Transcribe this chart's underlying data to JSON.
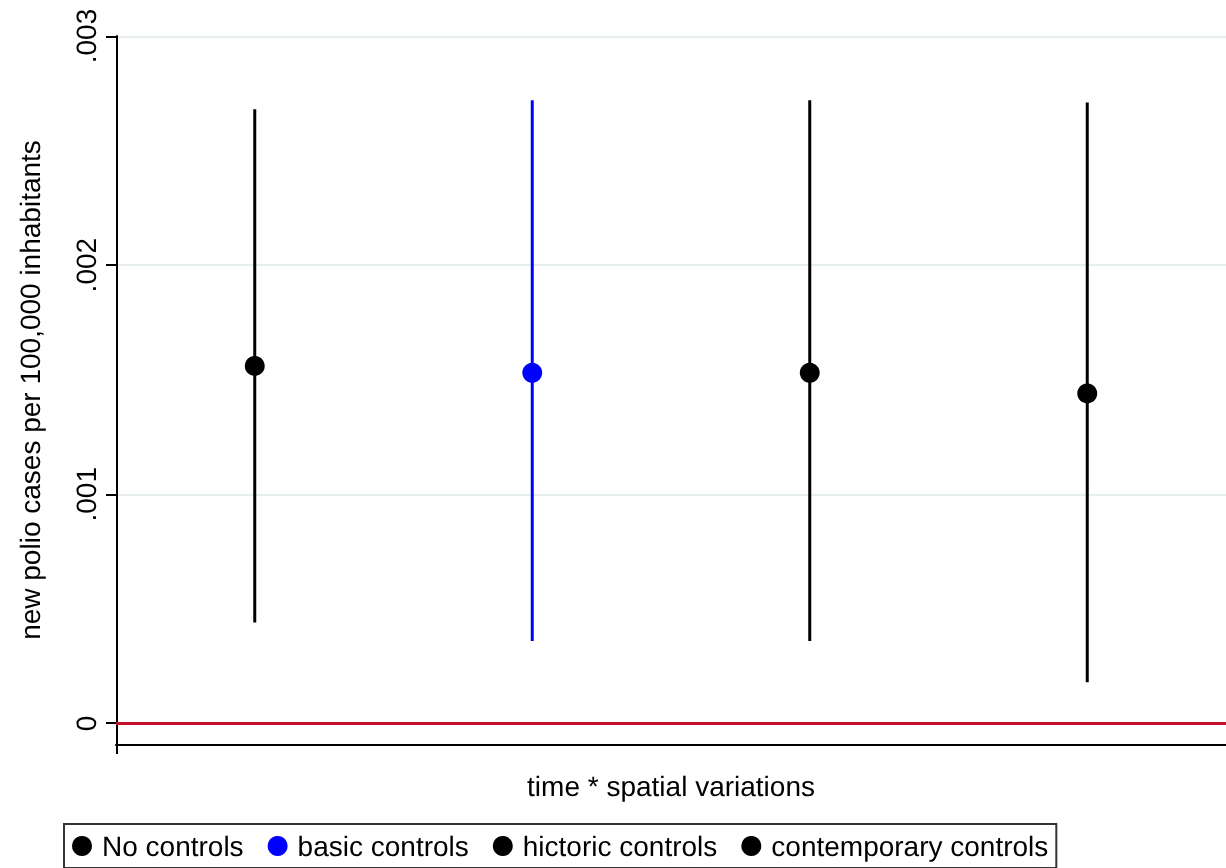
{
  "chart_data": {
    "type": "scatter",
    "xlabel": "time * spatial variations",
    "ylabel": "new polio cases per 100,000 inhabitants",
    "categories": [
      null,
      null,
      null,
      null
    ],
    "ylim": [
      -9e-05,
      0.003
    ],
    "yticks": [
      {
        "value": 0,
        "label": "0"
      },
      {
        "value": 0.001,
        "label": ".001"
      },
      {
        "value": 0.002,
        "label": ".002"
      },
      {
        "value": 0.003,
        "label": ".003"
      }
    ],
    "grid": "y",
    "legend": "bottom",
    "marker": "circle",
    "series": [
      {
        "name": "No controls",
        "color": "#000000",
        "values": [
          0.00156,
          null,
          null,
          null
        ],
        "errors": [
          [
            0.00044,
            0.00268
          ],
          null,
          null,
          null
        ]
      },
      {
        "name": "basic controls",
        "color": "#0000ff",
        "values": [
          null,
          0.00153,
          null,
          null
        ],
        "errors": [
          null,
          [
            0.00036,
            0.00272
          ],
          null,
          null
        ]
      },
      {
        "name": "hictoric controls",
        "color": "#000000",
        "values": [
          null,
          null,
          0.00153,
          null
        ],
        "errors": [
          null,
          null,
          [
            0.00036,
            0.00272
          ],
          null
        ]
      },
      {
        "name": "contemporary controls",
        "color": "#000000",
        "values": [
          null,
          null,
          null,
          0.00144
        ],
        "errors": [
          null,
          null,
          null,
          [
            0.00018,
            0.00271
          ]
        ]
      }
    ],
    "ref_lines": [
      {
        "axis": "y",
        "value": 0,
        "color": "#c8102e"
      }
    ]
  }
}
